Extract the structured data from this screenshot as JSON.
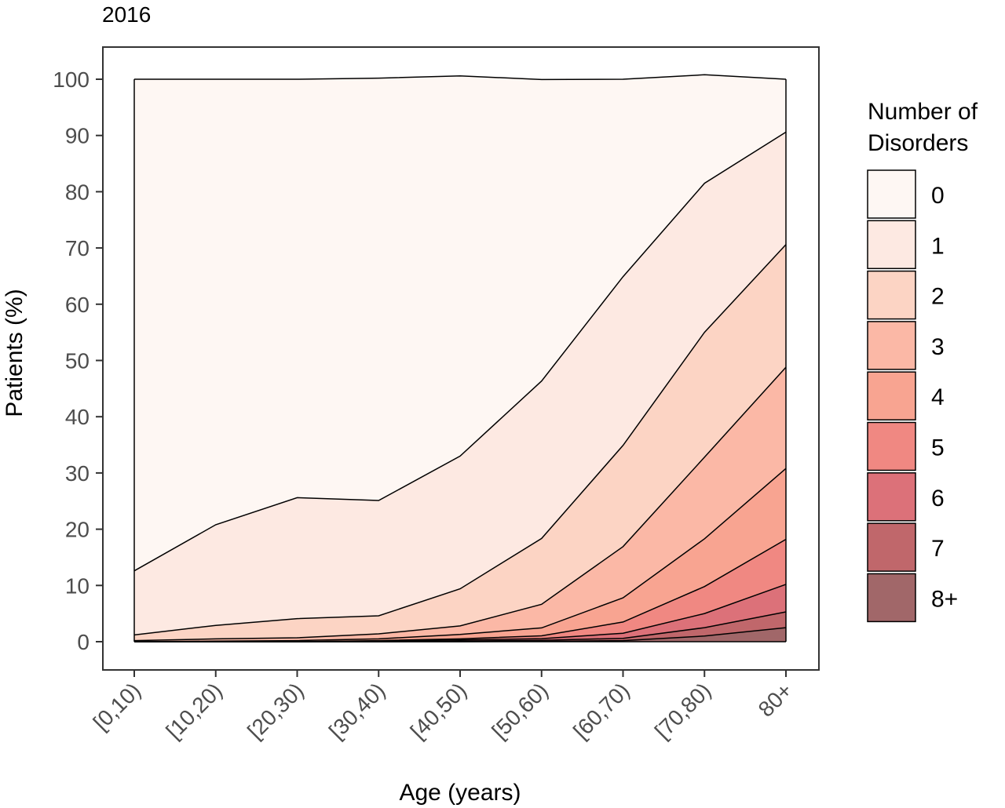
{
  "chart_data": {
    "type": "area",
    "title": "2016",
    "xlabel": "Age (years)",
    "ylabel": "Patients (%)",
    "categories": [
      "[0,10)",
      "[10,20)",
      "[20,30)",
      "[30,40)",
      "[40,50)",
      "[50,60)",
      "[60,70)",
      "[70,80)",
      "80+"
    ],
    "ylim": [
      0,
      100
    ],
    "yticks": [
      0,
      10,
      20,
      30,
      40,
      50,
      60,
      70,
      80,
      90,
      100
    ],
    "stacked": true,
    "grid": false,
    "legend_position": "right",
    "legend_title_lines": [
      "Number of",
      "Disorders"
    ],
    "series": [
      {
        "name": "8+",
        "color": "#A16769",
        "values": [
          0,
          0,
          0,
          0,
          0,
          0.05,
          0.2,
          1.0,
          2.5
        ]
      },
      {
        "name": "7",
        "color": "#C0676B",
        "values": [
          0,
          0,
          0,
          0,
          0.1,
          0.2,
          0.4,
          1.5,
          2.8
        ]
      },
      {
        "name": "6",
        "color": "#DC7179",
        "values": [
          0,
          0,
          0,
          0.1,
          0.2,
          0.3,
          0.9,
          2.5,
          4.9
        ]
      },
      {
        "name": "5",
        "color": "#F08882",
        "values": [
          0,
          0,
          0,
          0.1,
          0.2,
          0.5,
          2.0,
          4.8,
          8.0
        ]
      },
      {
        "name": "4",
        "color": "#F8A491",
        "values": [
          0,
          0.1,
          0.2,
          0.3,
          0.8,
          1.4,
          4.3,
          8.5,
          12.6
        ]
      },
      {
        "name": "3",
        "color": "#FBB8A6",
        "values": [
          0.2,
          0.4,
          0.5,
          0.9,
          1.5,
          4.2,
          9.1,
          14.5,
          18.0
        ]
      },
      {
        "name": "2",
        "color": "#FCD4C4",
        "values": [
          1.0,
          2.4,
          3.4,
          3.2,
          6.6,
          11.7,
          18.0,
          22.2,
          21.8
        ]
      },
      {
        "name": "1",
        "color": "#FDE9E2",
        "values": [
          11.4,
          17.9,
          21.5,
          20.5,
          23.6,
          28.0,
          30.0,
          26.5,
          20.0
        ]
      },
      {
        "name": "0",
        "color": "#FEF7F3",
        "values": [
          87.4,
          79.2,
          74.4,
          75.1,
          67.6,
          53.6,
          35.1,
          19.3,
          9.4
        ]
      }
    ]
  }
}
